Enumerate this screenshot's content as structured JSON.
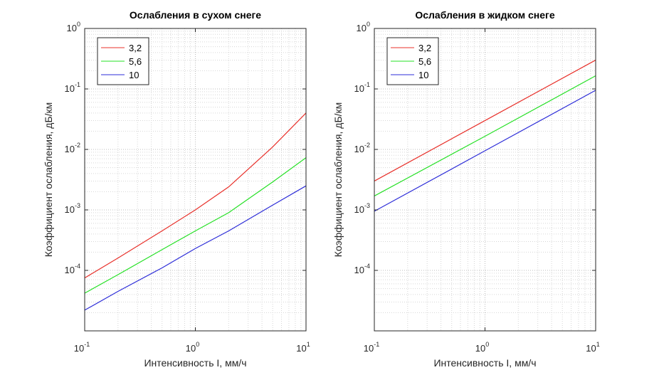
{
  "chart_data": [
    {
      "type": "line",
      "title": "Ослабления в сухом снеге",
      "xlabel": "Интенсивность I, мм/ч",
      "ylabel": "Коэффициент ослабления, дБ/км",
      "xscale": "log",
      "yscale": "log",
      "xlim": [
        0.1,
        10
      ],
      "ylim": [
        1e-05,
        1
      ],
      "grid": "on",
      "legend_position": "top-left",
      "x": [
        0.1,
        0.2,
        0.5,
        1,
        2,
        5,
        10
      ],
      "series": [
        {
          "name": "3,2",
          "color": "#e8302a",
          "values": [
            7.5e-05,
            0.00016,
            0.00045,
            0.001,
            0.0024,
            0.011,
            0.04
          ]
        },
        {
          "name": "5,6",
          "color": "#26e026",
          "values": [
            4.2e-05,
            8.5e-05,
            0.00022,
            0.00045,
            0.0009,
            0.0029,
            0.0073
          ]
        },
        {
          "name": "10",
          "color": "#2d2dd8",
          "values": [
            2.2e-05,
            4.5e-05,
            0.00011,
            0.00023,
            0.00045,
            0.0012,
            0.0025
          ]
        }
      ],
      "xticks": [
        {
          "base": "10",
          "exp": "-1"
        },
        {
          "base": "10",
          "exp": "0"
        },
        {
          "base": "10",
          "exp": "1"
        }
      ],
      "yticks": [
        {
          "base": "10",
          "exp": "-4"
        },
        {
          "base": "10",
          "exp": "-3"
        },
        {
          "base": "10",
          "exp": "-2"
        },
        {
          "base": "10",
          "exp": "-1"
        },
        {
          "base": "10",
          "exp": "0"
        }
      ]
    },
    {
      "type": "line",
      "title": "Ослабления в жидком снеге",
      "xlabel": "Интенсивность I, мм/ч",
      "ylabel": "Коэффициент ослабления, дБ/км",
      "xscale": "log",
      "yscale": "log",
      "xlim": [
        0.1,
        10
      ],
      "ylim": [
        1e-05,
        1
      ],
      "grid": "on",
      "legend_position": "top-left",
      "x": [
        0.1,
        1,
        10
      ],
      "series": [
        {
          "name": "3,2",
          "color": "#e8302a",
          "values": [
            0.003,
            0.03,
            0.3
          ]
        },
        {
          "name": "5,6",
          "color": "#26e026",
          "values": [
            0.0017,
            0.0165,
            0.165
          ]
        },
        {
          "name": "10",
          "color": "#2d2dd8",
          "values": [
            0.00095,
            0.0095,
            0.095
          ]
        }
      ],
      "xticks": [
        {
          "base": "10",
          "exp": "-1"
        },
        {
          "base": "10",
          "exp": "0"
        },
        {
          "base": "10",
          "exp": "1"
        }
      ],
      "yticks": [
        {
          "base": "10",
          "exp": "-4"
        },
        {
          "base": "10",
          "exp": "-3"
        },
        {
          "base": "10",
          "exp": "-2"
        },
        {
          "base": "10",
          "exp": "-1"
        },
        {
          "base": "10",
          "exp": "0"
        }
      ]
    }
  ]
}
